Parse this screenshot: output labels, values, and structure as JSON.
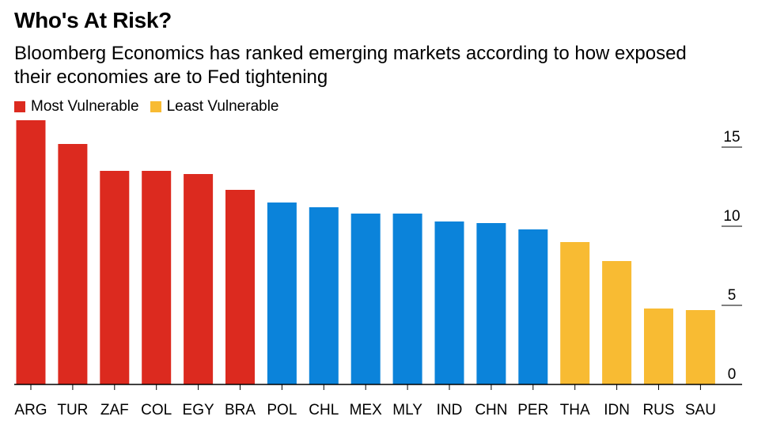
{
  "title": "Who's At Risk?",
  "subtitle": "Bloomberg Economics has ranked emerging markets according to how exposed their economies are to Fed tightening",
  "legend": [
    {
      "label": "Most Vulnerable",
      "color": "#dc2a1f"
    },
    {
      "label": "Least Vulnerable",
      "color": "#f8bb33"
    }
  ],
  "chart_data": {
    "type": "bar",
    "categories": [
      "ARG",
      "TUR",
      "ZAF",
      "COL",
      "EGY",
      "BRA",
      "POL",
      "CHL",
      "MEX",
      "MLY",
      "IND",
      "CHN",
      "PER",
      "THA",
      "IDN",
      "RUS",
      "SAU"
    ],
    "values": [
      16.7,
      15.2,
      13.5,
      13.5,
      13.3,
      12.3,
      11.5,
      11.2,
      10.8,
      10.8,
      10.3,
      10.2,
      9.8,
      9.0,
      7.8,
      4.8,
      4.7
    ],
    "groups": [
      "most",
      "most",
      "most",
      "most",
      "most",
      "most",
      "mid",
      "mid",
      "mid",
      "mid",
      "mid",
      "mid",
      "mid",
      "least",
      "least",
      "least",
      "least"
    ],
    "group_colors": {
      "most": "#dc2a1f",
      "mid": "#0b83da",
      "least": "#f8bb33"
    },
    "y_ticks": [
      0,
      5,
      10,
      15
    ],
    "ylim": [
      0,
      17
    ],
    "title": "Who's At Risk?",
    "xlabel": "",
    "ylabel": ""
  }
}
